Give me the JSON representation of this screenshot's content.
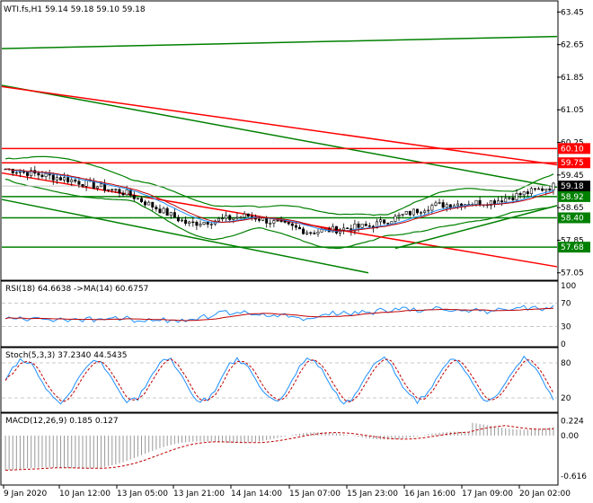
{
  "colors": {
    "red": "#ff0000",
    "green": "#008000",
    "candle": "#000000",
    "ma_blue": "#1e90ff",
    "ma_red": "#c00000",
    "grid": "#c8c8c8",
    "tag_red_bg": "#ff0000",
    "tag_green_bg": "#008000",
    "tag_black_bg": "#000000"
  },
  "main": {
    "header": "WTI.fs,H1  59.14 59.18 59.10 59.18",
    "price_ticks": [
      "63.45",
      "62.65",
      "61.85",
      "61.05",
      "60.25",
      "59.45",
      "58.65",
      "57.85",
      "57.05"
    ],
    "price_tick_values": [
      63.45,
      62.65,
      61.85,
      61.05,
      60.25,
      59.45,
      58.65,
      57.85,
      57.05
    ],
    "levels": [
      {
        "label": "60.10",
        "value": 60.1,
        "color": "red"
      },
      {
        "label": "59.75",
        "value": 59.75,
        "color": "red"
      },
      {
        "label": "59.18",
        "value": 59.18,
        "color": "black"
      },
      {
        "label": "58.92",
        "value": 58.92,
        "color": "green"
      },
      {
        "label": "58.40",
        "value": 58.4,
        "color": "green"
      },
      {
        "label": "57.68",
        "value": 57.68,
        "color": "green"
      }
    ]
  },
  "rsi": {
    "header": "RSI(18) 64.6638  ->MA(14) 60.6757",
    "ticks": [
      "100",
      "70",
      "30",
      "0"
    ],
    "tick_values": [
      100,
      70,
      30,
      0
    ]
  },
  "stoch": {
    "header": "Stoch(5,3,3) 37.2340 44.5435",
    "ticks": [
      "80",
      "20"
    ],
    "tick_values": [
      80,
      20
    ]
  },
  "macd": {
    "header": "MACD(12,26,9) 0.185 0.127",
    "ticks": [
      "0.224",
      "0.00",
      "-0.616"
    ],
    "tick_values": [
      0.224,
      0.0,
      -0.616
    ]
  },
  "time_labels": [
    "9 Jan 2020",
    "10 Jan 12:00",
    "13 Jan 05:00",
    "13 Jan 21:00",
    "14 Jan 14:00",
    "15 Jan 07:00",
    "15 Jan 23:00",
    "16 Jan 16:00",
    "17 Jan 09:00",
    "20 Jan 02:00"
  ],
  "chart_data": {
    "type": "line",
    "title": "WTI.fs,H1",
    "x": [
      "9 Jan 2020",
      "10 Jan 12:00",
      "13 Jan 05:00",
      "13 Jan 21:00",
      "14 Jan 14:00",
      "15 Jan 07:00",
      "15 Jan 23:00",
      "16 Jan 16:00",
      "17 Jan 09:00",
      "20 Jan 02:00"
    ],
    "series": [
      {
        "name": "Close",
        "values": [
          59.6,
          59.35,
          59.0,
          58.25,
          58.45,
          58.05,
          58.2,
          58.7,
          58.8,
          59.18
        ]
      }
    ],
    "ylim": [
      57.05,
      63.45
    ],
    "ohlc_last": {
      "open": 59.14,
      "high": 59.18,
      "low": 59.1,
      "close": 59.18
    },
    "indicators": {
      "rsi": {
        "period": 18,
        "value": 64.6638,
        "ma_period": 14,
        "ma_value": 60.6757,
        "ylim": [
          0,
          100
        ]
      },
      "stoch": {
        "params": "5,3,3",
        "k": 37.234,
        "d": 44.5435,
        "ylim": [
          0,
          100
        ]
      },
      "macd": {
        "params": "12,26,9",
        "macd": 0.185,
        "signal": 0.127,
        "ylim": [
          -0.616,
          0.224
        ]
      }
    }
  }
}
